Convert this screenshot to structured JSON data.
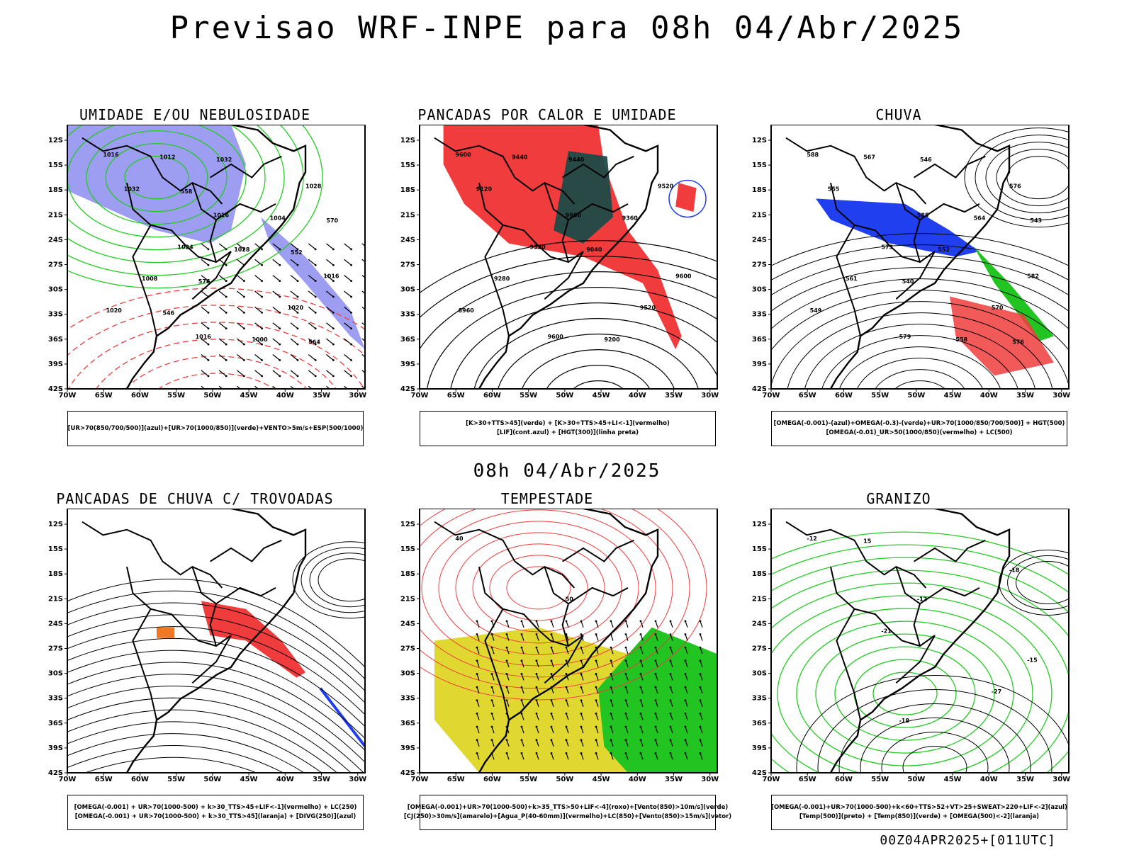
{
  "header": {
    "title": "Previsao WRF-INPE  para 08h 04/Abr/2025"
  },
  "middle_label": "08h 04/Abr/2025",
  "run_label": "00Z04APR2025+[011UTC]",
  "axes": {
    "lat_labels": [
      "12S",
      "15S",
      "18S",
      "21S",
      "24S",
      "27S",
      "30S",
      "33S",
      "36S",
      "39S",
      "42S"
    ],
    "lon_labels": [
      "70W",
      "65W",
      "60W",
      "55W",
      "50W",
      "45W",
      "40W",
      "35W",
      "30W"
    ]
  },
  "colors": {
    "blue_fill": "#8c8cf0",
    "green_line": "#22cc22",
    "red": "#f03c3c",
    "dark_teal": "#1e4a48",
    "blue": "#2040f0",
    "orange": "#f07820",
    "yellow": "#e0d830",
    "green_fill": "#22c422",
    "magenta": "#c83cc8"
  },
  "panels": [
    {
      "title": "UMIDADE E/OU NEBULOSIDADE",
      "legend": [
        "[UR>70(850/700/500)](azul)+[UR>70(1000/850)](verde)+VENTO>5m/s+ESP(500/1000)"
      ],
      "contour_labels": [
        "1016",
        "1016",
        "1016",
        "1016",
        "1028",
        "1024",
        "1020",
        "1012",
        "1004",
        "1008",
        "1000",
        "1032",
        "1028",
        "1020",
        "1032",
        "570",
        "576",
        "564",
        "558",
        "552",
        "546"
      ]
    },
    {
      "title": "PANCADAS POR CALOR E UMIDADE",
      "legend": [
        "[K>30+TTS>45](verde) + [K>30+TTS>45+LI<-1](vermelho)",
        "[LIF](cont.azul) + [HGT(300)](linha preta)"
      ],
      "contour_labels": [
        "9600",
        "9600",
        "9600",
        "9600",
        "9520",
        "9520",
        "9520",
        "9440",
        "9360",
        "9280",
        "9200",
        "9120",
        "9040",
        "8960",
        "9440"
      ]
    },
    {
      "title": "CHUVA",
      "legend": [
        "[OMEGA(-0.001)-(azul)+OMEGA(-0.3)-(verde)+UR>70(1000/850/700/500)] + HGT(500)",
        "[OMEGA(-0.01)_UR>50(1000/850)(vermelho) + LC(500)"
      ],
      "contour_labels": [
        "588",
        "585",
        "582",
        "579",
        "576",
        "573",
        "570",
        "567",
        "564",
        "561",
        "558",
        "555",
        "552",
        "549",
        "546",
        "543",
        "540",
        "576"
      ]
    },
    {
      "title": "PANCADAS DE CHUVA C/ TROVOADAS",
      "legend": [
        "[OMEGA(-0.001) + UR>70(1000-500) + k>30_TTS>45+LIF<-1](vermelho) + LC(250)",
        "[OMEGA(-0.001) + UR>70(1000-500) + k>30_TTS>45](laranja) + [DIVG(250)](azul)"
      ],
      "contour_labels": []
    },
    {
      "title": "TEMPESTADE",
      "legend": [
        "[OMEGA(-0.001)+UR>70(1000-500)+k>35_TTS>50+LIF<-4](roxo)+[Vento(850)>10m/s](verde)",
        "[CJ(250)>30m/s](amarelo)+[Agua_P(40-60mm)](vermelho)+LC(850)+[Vento(850)>15m/s](vetor)"
      ],
      "contour_labels": [
        "40",
        "50"
      ]
    },
    {
      "title": "GRANIZO",
      "legend": [
        "[OMEGA(-0.001)+UR>70(1000-500)+k<60+TTS>52+VT>25+SWEAT>220+LIF<-2](azul)",
        "[Temp(500)](preto) + [Temp(850)](verde) + [OMEGA(500)<-2](laranja)"
      ],
      "contour_labels": [
        "-12",
        "-12",
        "-15",
        "-18",
        "-18",
        "-21",
        "-27",
        "15"
      ]
    }
  ]
}
